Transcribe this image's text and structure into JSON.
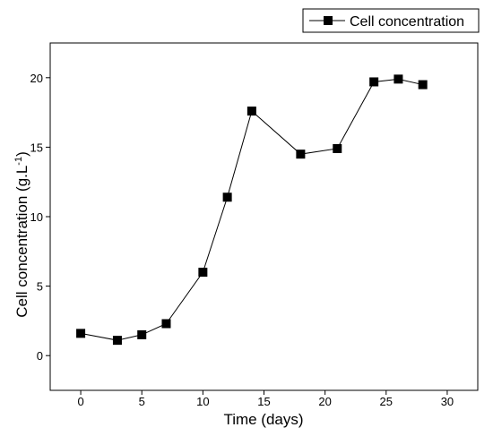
{
  "chart_data": {
    "type": "line",
    "xlabel": "Time (days)",
    "ylabel_main": "Cell concentration (g.L",
    "ylabel_sup": "-1",
    "ylabel_close": ")",
    "x_ticks": [
      0,
      5,
      10,
      15,
      20,
      25,
      30
    ],
    "y_ticks": [
      0,
      5,
      10,
      15,
      20
    ],
    "xlim": [
      -2.5,
      32.5
    ],
    "ylim": [
      -2.5,
      22.5
    ],
    "legend": {
      "position": "top-right",
      "entry": "Cell concentration"
    },
    "series": [
      {
        "name": "Cell concentration",
        "color": "#000000",
        "marker": "square",
        "x": [
          0,
          3,
          5,
          7,
          10,
          12,
          14,
          18,
          21,
          24,
          26,
          28
        ],
        "y": [
          1.6,
          1.1,
          1.5,
          2.3,
          6.0,
          11.4,
          17.6,
          14.5,
          14.9,
          19.7,
          19.9,
          19.5
        ]
      }
    ]
  }
}
